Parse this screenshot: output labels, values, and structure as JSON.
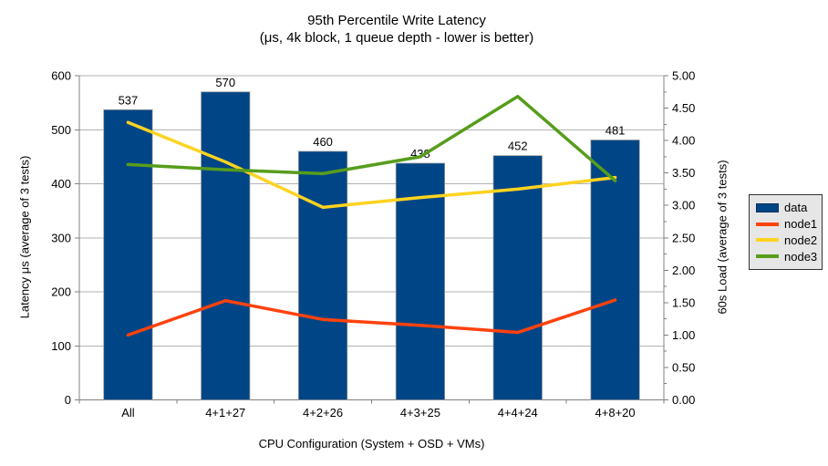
{
  "chart": {
    "title": "95th Percentile Write Latency",
    "subtitle": "(μs, 4k block, 1 queue depth - lower is better)",
    "x_axis_title": "CPU Configuration (System + OSD + VMs)",
    "y_left_axis_title": "Latency μs (average of 3 tests)",
    "y_right_axis_title": "60s Load (average of 3 tests)"
  },
  "chart_data": {
    "type": "bar",
    "subtype": "bar + line combo with dual y-axes",
    "title": "95th Percentile Write Latency (μs, 4k block, 1 queue depth - lower is better)",
    "xlabel": "CPU Configuration (System + OSD + VMs)",
    "ylabel_left": "Latency μs (average of 3 tests)",
    "ylabel_right": "60s Load (average of 3 tests)",
    "categories": [
      "All",
      "4+1+27",
      "4+2+26",
      "4+3+25",
      "4+4+24",
      "4+8+20"
    ],
    "series": [
      {
        "name": "data",
        "type": "bar",
        "axis": "left",
        "color": "#004586",
        "values": [
          537,
          570,
          460,
          438,
          452,
          481
        ],
        "labels": [
          "537",
          "570",
          "460",
          "438",
          "452",
          "481"
        ]
      },
      {
        "name": "node1",
        "type": "line",
        "axis": "right",
        "color": "#ff420e",
        "values": [
          1.0,
          1.53,
          1.24,
          1.15,
          1.04,
          1.54
        ]
      },
      {
        "name": "node2",
        "type": "line",
        "axis": "right",
        "color": "#ffd320",
        "values": [
          4.28,
          3.67,
          2.97,
          3.12,
          3.25,
          3.43
        ]
      },
      {
        "name": "node3",
        "type": "line",
        "axis": "right",
        "color": "#579d1c",
        "values": [
          3.63,
          3.55,
          3.49,
          3.75,
          4.68,
          3.38
        ]
      }
    ],
    "left_axis": {
      "min": 0,
      "max": 600,
      "step": 100,
      "tick_labels": [
        "0",
        "100",
        "200",
        "300",
        "400",
        "500",
        "600"
      ]
    },
    "right_axis": {
      "min": 0,
      "max": 5,
      "step": 0.5,
      "tick_labels": [
        "0.00",
        "0.50",
        "1.00",
        "1.50",
        "2.00",
        "2.50",
        "3.00",
        "3.50",
        "4.00",
        "4.50",
        "5.00"
      ]
    },
    "legend_position": "right",
    "grid": "horizontal major gridlines only"
  },
  "colors": {
    "background": "#ffffff",
    "bar": "#004586",
    "node1": "#ff420e",
    "node2": "#ffd320",
    "node3": "#579d1c",
    "gridline": "#b3b3b3",
    "axis": "#808080",
    "bar_outline": "#999999",
    "text": "#000000",
    "legend_bg": "#e6e6e6",
    "legend_border": "#333333"
  }
}
